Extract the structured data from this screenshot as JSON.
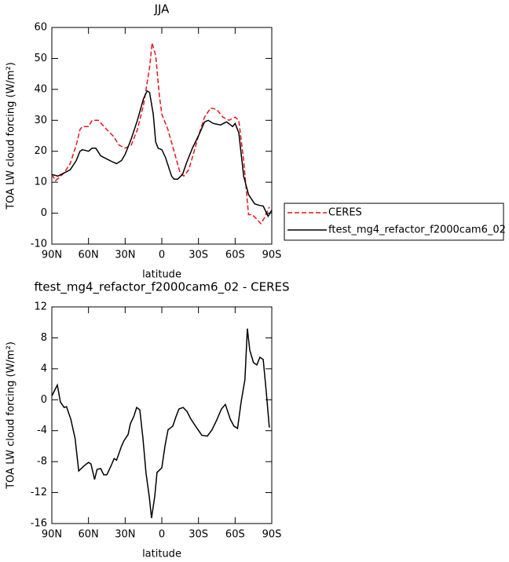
{
  "chart_data": [
    {
      "type": "line",
      "title": "JJA",
      "x_label": "latitude",
      "y_label": "TOA LW cloud forcing (W/m²)",
      "xlim": [
        90,
        -90
      ],
      "ylim": [
        -10,
        60
      ],
      "xticks": [
        {
          "value": 90,
          "label": "90N"
        },
        {
          "value": 60,
          "label": "60N"
        },
        {
          "value": 30,
          "label": "30N"
        },
        0,
        {
          "value": -30,
          "label": "30S"
        },
        {
          "value": -60,
          "label": "60S"
        },
        {
          "value": -90,
          "label": "90S"
        }
      ],
      "yticks": [
        -10,
        0,
        10,
        20,
        30,
        40,
        50,
        60
      ],
      "legend": "right",
      "series": [
        {
          "name": "CERES",
          "color": "#e8141b",
          "dash": true,
          "x": [
            90,
            87,
            80,
            75,
            70,
            67,
            65,
            60,
            57,
            52,
            45,
            40,
            35,
            30,
            25,
            20,
            15,
            10,
            8,
            5,
            2,
            0,
            -5,
            -10,
            -15,
            -18,
            -22,
            -25,
            -30,
            -35,
            -40,
            -45,
            -50,
            -55,
            -60,
            -63,
            -67,
            -71,
            -74,
            -78,
            -81,
            -84,
            -88
          ],
          "values": [
            12.5,
            10.5,
            13,
            16,
            22,
            27,
            28,
            28,
            30,
            30,
            27,
            25,
            22,
            21,
            22,
            27,
            35,
            47,
            55,
            51,
            38,
            32,
            27,
            20,
            13,
            12,
            14,
            18,
            25,
            31,
            34,
            33.5,
            31,
            30,
            31,
            30,
            17,
            -0.5,
            -0.5,
            -2,
            -3.4,
            -1.5,
            2
          ]
        },
        {
          "name": "ftest_mg4_refactor_f2000cam6_02",
          "color": "#000000",
          "dash": false,
          "x": [
            90,
            85,
            80,
            75,
            70,
            67,
            65,
            60,
            57,
            54,
            50,
            45,
            40,
            37,
            33,
            30,
            25,
            20,
            15,
            12,
            10,
            7,
            5,
            3,
            0,
            -3,
            -8,
            -10,
            -13,
            -17,
            -20,
            -25,
            -30,
            -35,
            -38,
            -42,
            -48,
            -53,
            -58,
            -60,
            -63,
            -67,
            -71,
            -76,
            -80,
            -83,
            -87,
            -90
          ],
          "values": [
            12.5,
            12,
            13,
            14,
            17,
            20,
            20.5,
            20,
            21,
            21,
            18.5,
            17.5,
            16.5,
            16,
            17,
            19,
            24,
            30,
            37,
            39.5,
            39,
            32,
            23,
            21,
            20.5,
            18,
            12,
            11,
            11,
            12.5,
            16,
            21,
            25,
            29.5,
            30,
            29,
            28.5,
            29.5,
            28,
            29,
            26,
            12,
            6,
            3,
            2.5,
            2.3,
            -1,
            1
          ]
        }
      ]
    },
    {
      "type": "line",
      "title": "ftest_mg4_refactor_f2000cam6_02 - CERES",
      "x_label": "latitude",
      "y_label": "TOA LW cloud forcing (W/m²)",
      "xlim": [
        90,
        -90
      ],
      "ylim": [
        -16,
        12
      ],
      "xticks": [
        {
          "value": 90,
          "label": "90N"
        },
        {
          "value": 60,
          "label": "60N"
        },
        {
          "value": 30,
          "label": "30N"
        },
        0,
        {
          "value": -30,
          "label": "30S"
        },
        {
          "value": -60,
          "label": "60S"
        },
        {
          "value": -90,
          "label": "90S"
        }
      ],
      "yticks": [
        -16,
        -12,
        -8,
        -4,
        0,
        4,
        8,
        12
      ],
      "series": [
        {
          "color": "#000000",
          "dash": false,
          "x": [
            90,
            85.5,
            83,
            80,
            78,
            74.5,
            71,
            68,
            64,
            60,
            58,
            55,
            53,
            50,
            47.5,
            45,
            42,
            39,
            37,
            33,
            31,
            27.6,
            25.7,
            23,
            20.6,
            18,
            15.4,
            12.9,
            10.3,
            8.4,
            5.8,
            3.9,
            0,
            -2.6,
            -5.1,
            -9,
            -11.6,
            -14,
            -17.4,
            -20.6,
            -23.8,
            -28,
            -32.8,
            -37.3,
            -41,
            -45,
            -48.8,
            -52,
            -56,
            -59,
            -62,
            -65,
            -68,
            -70,
            -72,
            -75,
            -77.8,
            -80.3,
            -83,
            -85.5,
            -88
          ],
          "values": [
            0.5,
            1.9,
            -0.3,
            -1,
            -0.9,
            -2.5,
            -5,
            -9.2,
            -8.6,
            -8.1,
            -8.3,
            -10.3,
            -9,
            -8.9,
            -9.7,
            -9.7,
            -8.7,
            -7.6,
            -7.8,
            -6,
            -5.3,
            -4.5,
            -3.1,
            -2.2,
            -1,
            -1.3,
            -5,
            -9.5,
            -12.5,
            -15.3,
            -12.5,
            -9.4,
            -8.8,
            -6,
            -3.9,
            -3.4,
            -2.2,
            -1.2,
            -1,
            -1.5,
            -2.5,
            -3.5,
            -4.6,
            -4.7,
            -3.9,
            -2.6,
            -1.2,
            -0.6,
            -2.5,
            -3.4,
            -3.7,
            -0.2,
            2.6,
            9.2,
            6.4,
            4.8,
            4.5,
            5.5,
            5.2,
            1,
            -3.6
          ]
        }
      ]
    }
  ]
}
